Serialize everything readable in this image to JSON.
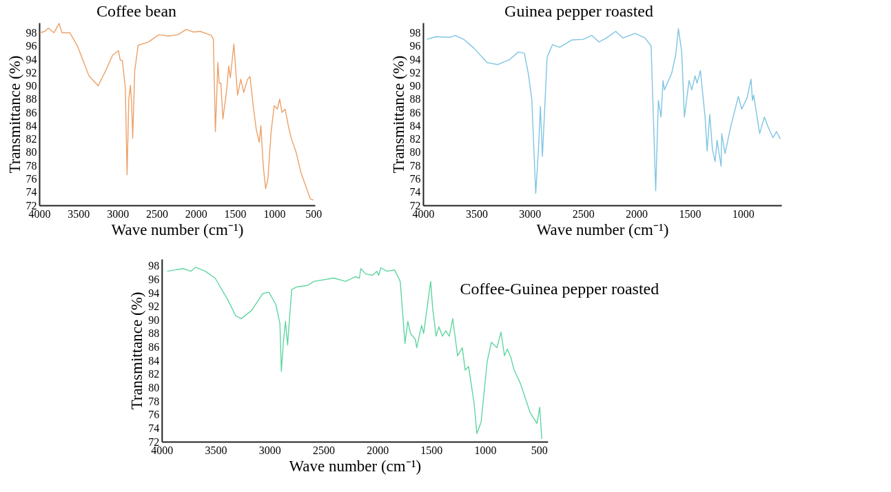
{
  "chart_data": [
    {
      "type": "line",
      "xlabel": "Wave number (cm⁻¹)",
      "ylabel": "Transmittance (%)",
      "xlim": [
        4000,
        480
      ],
      "ylim": [
        72,
        99.5
      ],
      "xticks": [
        4000,
        3500,
        3000,
        2500,
        2000,
        1500,
        1000,
        500
      ],
      "yticks": [
        72,
        74,
        76,
        78,
        80,
        82,
        84,
        86,
        88,
        90,
        92,
        94,
        96,
        98
      ],
      "annotations": [
        "Coffee bean"
      ],
      "x": [
        3990,
        3928,
        3884,
        3812,
        3746,
        3711,
        3610,
        3509,
        3366,
        3248,
        3151,
        3065,
        2989,
        2967,
        2939,
        2901,
        2879,
        2857,
        2836,
        2820,
        2807,
        2781,
        2737,
        2605,
        2472,
        2350,
        2229,
        2123,
        2030,
        1947,
        1802,
        1777,
        1751,
        1719,
        1702,
        1681,
        1655,
        1606,
        1581,
        1560,
        1515,
        1468,
        1426,
        1389,
        1340,
        1309,
        1266,
        1230,
        1190,
        1170,
        1140,
        1110,
        1080,
        1040,
        1000,
        960,
        930,
        900,
        860,
        820,
        780,
        720,
        660,
        600,
        540,
        500
      ],
      "series": [
        {
          "color": "#eda067",
          "values": [
            98.0,
            98.2,
            98.7,
            98.0,
            99.4,
            98.0,
            98.0,
            95.9,
            91.5,
            90.0,
            92.3,
            94.6,
            95.3,
            93.9,
            93.8,
            89.7,
            76.6,
            87.9,
            90.1,
            87.2,
            82.1,
            92.3,
            96.1,
            96.6,
            97.7,
            97.5,
            97.7,
            98.5,
            98.1,
            98.2,
            97.6,
            97.0,
            83.1,
            93.5,
            90.4,
            90.4,
            85.0,
            89.4,
            93.0,
            91.2,
            96.3,
            88.6,
            91.0,
            89.0,
            91.0,
            91.4,
            86.8,
            83.5,
            81.5,
            84.0,
            78.0,
            74.5,
            76.0,
            83.0,
            87.0,
            86.5,
            88.0,
            86.0,
            86.5,
            84.0,
            82.0,
            80.0,
            77.0,
            75.0,
            73.0,
            72.8
          ]
        }
      ]
    },
    {
      "type": "line",
      "xlabel": "Wave number (cm⁻¹)",
      "ylabel": "Transmittance (%)",
      "xlim": [
        4000,
        640
      ],
      "ylim": [
        72,
        99.5
      ],
      "xticks": [
        4000,
        3500,
        3000,
        2500,
        2000,
        1500,
        1000
      ],
      "yticks": [
        72,
        74,
        76,
        78,
        80,
        82,
        84,
        86,
        88,
        90,
        92,
        94,
        96,
        98
      ],
      "annotations": [
        "Guinea pepper roasted"
      ],
      "x": [
        3965,
        3881,
        3744,
        3700,
        3619,
        3525,
        3400,
        3300,
        3194,
        3106,
        3050,
        3012,
        2981,
        2944,
        2919,
        2900,
        2881,
        2837,
        2787,
        2719,
        2606,
        2500,
        2419,
        2350,
        2281,
        2194,
        2125,
        2012,
        1919,
        1862,
        1819,
        1794,
        1769,
        1750,
        1737,
        1669,
        1631,
        1606,
        1575,
        1550,
        1506,
        1481,
        1450,
        1431,
        1400,
        1356,
        1337,
        1312,
        1287,
        1262,
        1244,
        1206,
        1200,
        1169,
        1112,
        1044,
        1012,
        962,
        925,
        912,
        900,
        844,
        800,
        762,
        719,
        687,
        650
      ],
      "series": [
        {
          "color": "#7fc4e3",
          "values": [
            97.0,
            97.4,
            97.3,
            97.6,
            97.0,
            95.7,
            93.5,
            93.2,
            93.9,
            95.1,
            94.9,
            91.7,
            88.0,
            73.8,
            80.2,
            86.9,
            79.4,
            94.3,
            96.2,
            95.8,
            96.9,
            97.0,
            97.6,
            96.6,
            97.2,
            98.2,
            97.2,
            97.9,
            97.2,
            96.0,
            74.2,
            87.8,
            85.3,
            90.8,
            89.4,
            91.9,
            94.7,
            98.6,
            95.1,
            85.3,
            90.8,
            89.4,
            91.5,
            90.4,
            92.3,
            85.3,
            80.2,
            85.7,
            80.4,
            78.6,
            81.8,
            77.9,
            82.8,
            79.8,
            84.1,
            88.4,
            86.5,
            88.2,
            91.0,
            87.8,
            88.6,
            82.8,
            85.3,
            83.7,
            82.2,
            83.1,
            82.0
          ]
        }
      ]
    },
    {
      "type": "line",
      "xlabel": "Wave number (cm⁻¹)",
      "ylabel": "Transmittance (%)",
      "xlim": [
        4000,
        420
      ],
      "ylim": [
        72,
        99
      ],
      "xticks": [
        4000,
        3500,
        3000,
        2500,
        2000,
        1500,
        1000,
        500
      ],
      "yticks": [
        72,
        74,
        76,
        78,
        80,
        82,
        84,
        86,
        88,
        90,
        92,
        94,
        96,
        98
      ],
      "annotations": [
        "Coffee-Guinea pepper roasted"
      ],
      "x": [
        3950,
        3801,
        3731,
        3686,
        3596,
        3506,
        3385,
        3314,
        3263,
        3167,
        3064,
        3006,
        2942,
        2904,
        2891,
        2872,
        2853,
        2833,
        2795,
        2744,
        2647,
        2590,
        2404,
        2295,
        2205,
        2167,
        2154,
        2109,
        2045,
        2006,
        1987,
        1968,
        1910,
        1840,
        1788,
        1744,
        1718,
        1692,
        1647,
        1635,
        1590,
        1571,
        1506,
        1487,
        1455,
        1429,
        1397,
        1365,
        1333,
        1301,
        1256,
        1212,
        1186,
        1154,
        1103,
        1077,
        1038,
        981,
        942,
        891,
        853,
        821,
        795,
        763,
        731,
        673,
        583,
        519,
        494,
        475
      ],
      "series": [
        {
          "color": "#5fd6a0",
          "values": [
            97.2,
            97.6,
            97.2,
            97.8,
            97.2,
            96.2,
            92.9,
            90.6,
            90.2,
            91.4,
            93.9,
            94.1,
            92.3,
            89.4,
            82.4,
            86.7,
            89.8,
            86.3,
            94.5,
            94.9,
            95.1,
            95.7,
            96.2,
            95.7,
            96.4,
            96.2,
            97.6,
            96.8,
            96.6,
            97.2,
            96.6,
            97.7,
            97.2,
            97.4,
            95.7,
            86.5,
            89.8,
            88.0,
            87.1,
            85.9,
            89.2,
            88.0,
            95.7,
            91.7,
            87.6,
            89.0,
            87.6,
            88.4,
            87.6,
            90.2,
            84.7,
            85.9,
            82.6,
            83.1,
            77.7,
            73.2,
            74.9,
            83.9,
            86.7,
            85.9,
            88.2,
            84.7,
            85.7,
            84.5,
            82.6,
            80.6,
            76.3,
            74.7,
            77.1,
            72.4
          ]
        }
      ]
    }
  ]
}
